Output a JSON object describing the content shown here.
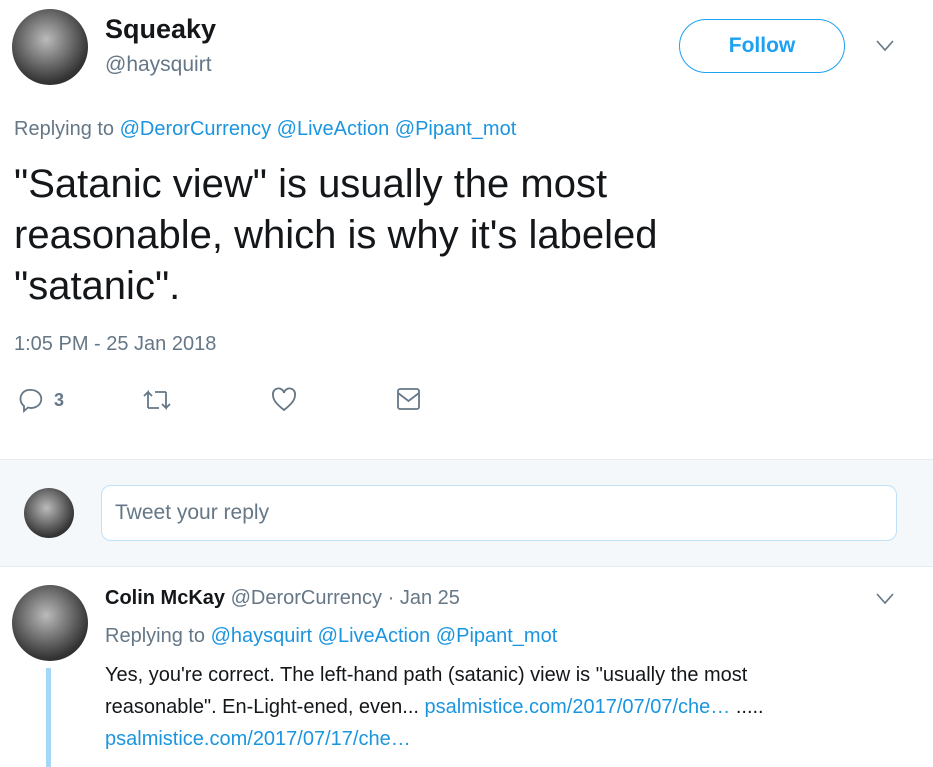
{
  "tweet": {
    "author_name": "Squeaky",
    "author_handle": "@haysquirt",
    "follow_label": "Follow",
    "replying_prefix": "Replying to",
    "replying_to": [
      "@DerorCurrency",
      "@LiveAction",
      "@Pipant_mot"
    ],
    "text_lines": [
      "\"Satanic view\" is usually the most",
      "reasonable, which is why it's labeled",
      "\"satanic\"."
    ],
    "timestamp": "1:05 PM - 25 Jan 2018",
    "reply_count": "3"
  },
  "composer": {
    "placeholder": "Tweet your reply"
  },
  "reply": {
    "author_name": "Colin McKay",
    "author_handle": "@DerorCurrency",
    "date": "· Jan 25",
    "replying_prefix": "Replying to",
    "replying_to": [
      "@haysquirt",
      "@LiveAction",
      "@Pipant_mot"
    ],
    "text_1": "Yes, you're correct. The left-hand path (satanic) view is \"usually the most",
    "text_2": "reasonable\". En-Light-ened, even...",
    "link_1": "psalmistice.com/2017/07/07/che…",
    "text_3": ".....",
    "link_2": "psalmistice.com/2017/07/17/che…"
  },
  "colors": {
    "accent": "#1da1f2",
    "muted": "#657786",
    "thread_line": "#a5d8f7",
    "composer_bg": "#f5f8fa"
  }
}
